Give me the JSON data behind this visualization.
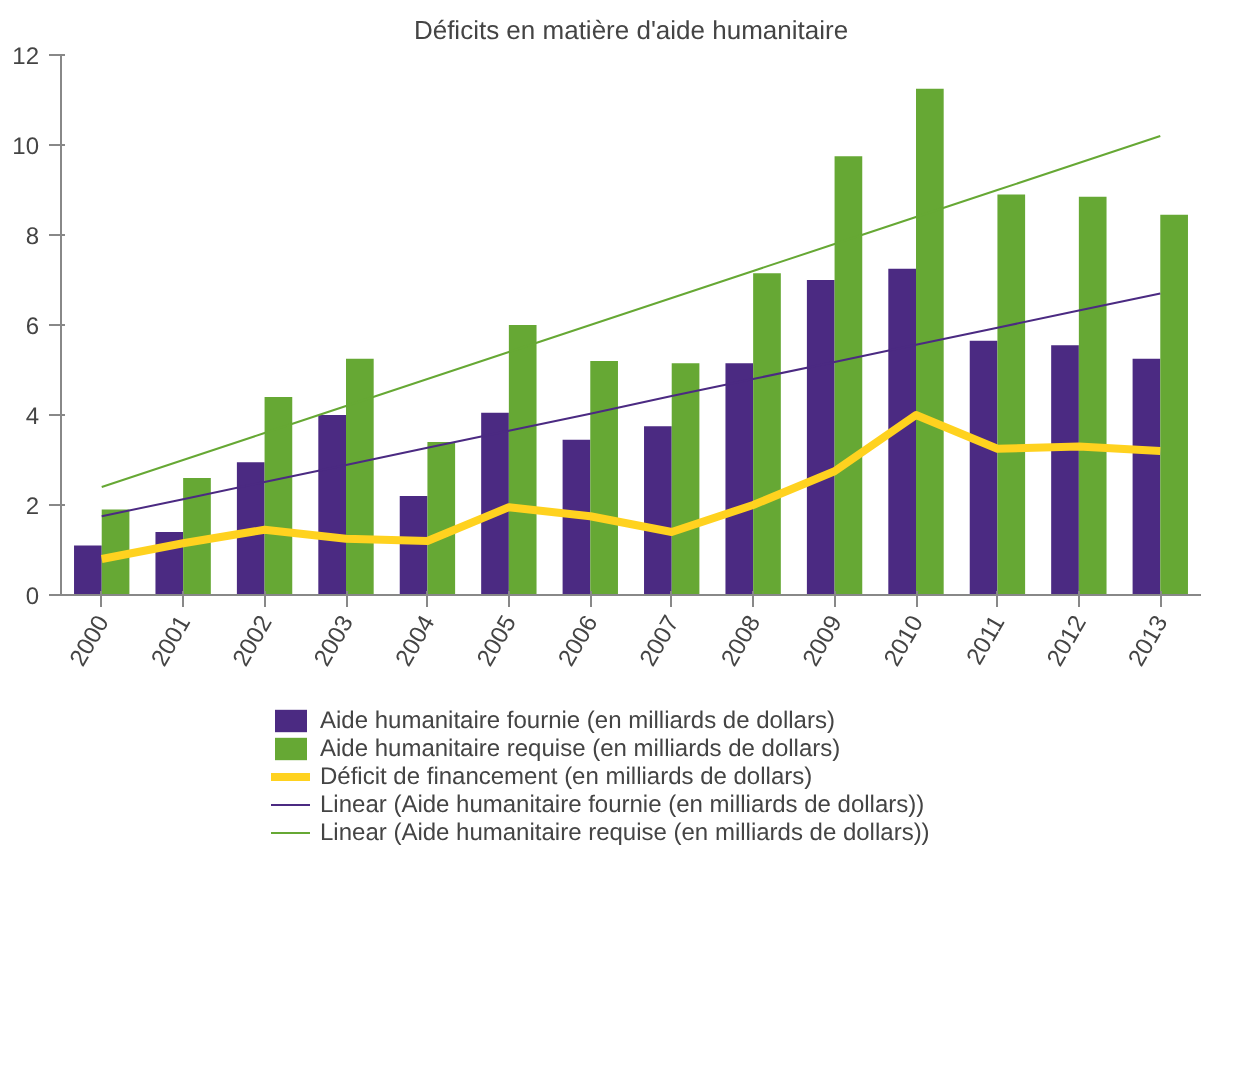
{
  "chart_data": {
    "type": "bar",
    "title": "Déficits en matière d'aide humanitaire",
    "categories": [
      "2000",
      "2001",
      "2002",
      "2003",
      "2004",
      "2005",
      "2006",
      "2007",
      "2008",
      "2009",
      "2010",
      "2011",
      "2012",
      "2013"
    ],
    "series": [
      {
        "name": "Aide humanitaire fournie (en milliards de dollars)",
        "color": "#4b2a82",
        "values": [
          1.1,
          1.4,
          2.95,
          4.0,
          2.2,
          4.05,
          3.45,
          3.75,
          5.15,
          7.0,
          7.25,
          5.65,
          5.55,
          5.25
        ]
      },
      {
        "name": "Aide humanitaire requise (en milliards de dollars)",
        "color": "#66a834",
        "values": [
          1.9,
          2.6,
          4.4,
          5.25,
          3.4,
          6.0,
          5.2,
          5.15,
          7.15,
          9.75,
          11.25,
          8.9,
          8.85,
          8.45
        ]
      },
      {
        "name": "Déficit de financement (en milliards de dollars)",
        "type": "line",
        "color": "#ffd21f",
        "values": [
          0.8,
          1.15,
          1.45,
          1.25,
          1.2,
          1.95,
          1.75,
          1.4,
          2.0,
          2.75,
          4.0,
          3.25,
          3.3,
          3.2
        ]
      },
      {
        "name": "Linear (Aide humanitaire fournie (en milliards de dollars))",
        "type": "line",
        "line_style": "solid",
        "color": "#4b2a82",
        "values": [
          1.75,
          2.13,
          2.51,
          2.89,
          3.27,
          3.65,
          4.03,
          4.42,
          4.8,
          5.18,
          5.56,
          5.94,
          6.32,
          6.7
        ]
      },
      {
        "name": "Linear (Aide humanitaire requise (en milliards de dollars))",
        "type": "line",
        "line_style": "solid",
        "color": "#66a834",
        "values": [
          2.4,
          3.0,
          3.6,
          4.2,
          4.8,
          5.4,
          6.0,
          6.6,
          7.2,
          7.8,
          8.4,
          9.0,
          9.6,
          10.2
        ]
      }
    ],
    "ylim": [
      0,
      12
    ],
    "yticks": [
      0,
      2,
      4,
      6,
      8,
      10,
      12
    ],
    "grid": false,
    "legend": "bottom"
  }
}
